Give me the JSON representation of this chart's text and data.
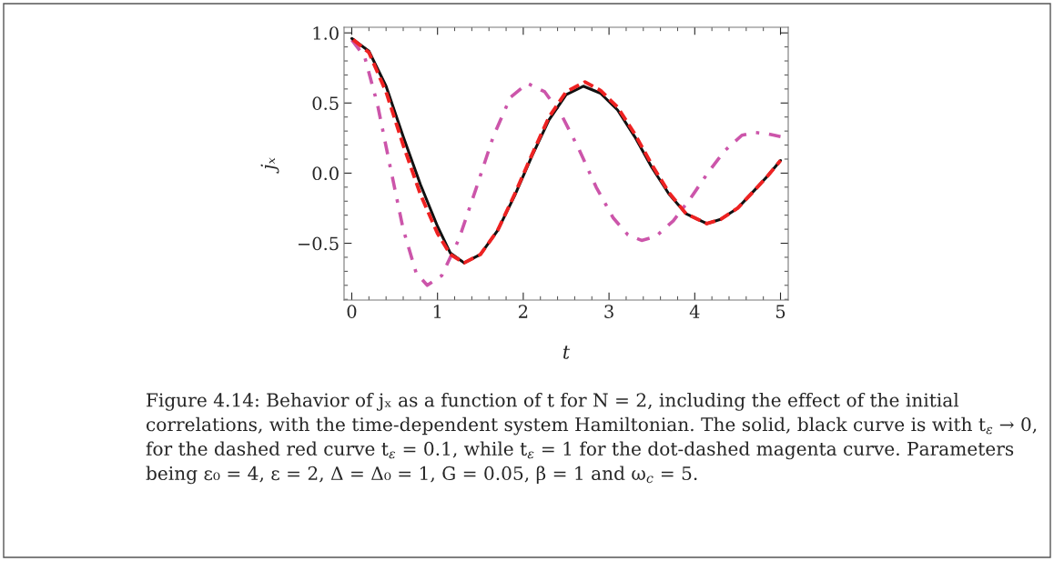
{
  "chart_data": {
    "type": "line",
    "xlabel": "t",
    "ylabel": "jₓ",
    "xlim": [
      -0.09,
      5.09
    ],
    "ylim": [
      -0.905,
      1.04
    ],
    "xticks": [
      0,
      1,
      2,
      3,
      4,
      5
    ],
    "yticks": [
      {
        "value": -0.5,
        "label": "−0.5"
      },
      {
        "value": 0.0,
        "label": "0.0"
      },
      {
        "value": 0.5,
        "label": "0.5"
      },
      {
        "value": 1.0,
        "label": "1.0"
      }
    ],
    "grid": false,
    "series": [
      {
        "color": "#cc55aa",
        "line_style": "dashdot",
        "x": [
          0,
          0.15,
          0.3,
          0.45,
          0.6,
          0.75,
          0.88,
          1.05,
          1.25,
          1.45,
          1.65,
          1.85,
          2.05,
          2.25,
          2.45,
          2.65,
          2.85,
          3.05,
          3.22,
          3.38,
          3.55,
          3.75,
          3.95,
          4.15,
          4.35,
          4.55,
          4.7,
          4.85,
          5.0
        ],
        "values": [
          0.95,
          0.83,
          0.49,
          0.04,
          -0.4,
          -0.71,
          -0.8,
          -0.73,
          -0.47,
          -0.11,
          0.26,
          0.54,
          0.64,
          0.58,
          0.41,
          0.17,
          -0.1,
          -0.32,
          -0.44,
          -0.48,
          -0.45,
          -0.34,
          -0.18,
          0.0,
          0.16,
          0.27,
          0.29,
          0.28,
          0.26
        ]
      },
      {
        "color": "#ee2222",
        "line_style": "dashed",
        "x": [
          0,
          0.2,
          0.4,
          0.6,
          0.8,
          1.0,
          1.15,
          1.31,
          1.5,
          1.7,
          1.9,
          2.1,
          2.3,
          2.5,
          2.72,
          2.9,
          3.1,
          3.3,
          3.5,
          3.7,
          3.9,
          4.14,
          4.3,
          4.5,
          4.7,
          4.85,
          5.0
        ],
        "values": [
          0.96,
          0.86,
          0.58,
          0.2,
          -0.15,
          -0.43,
          -0.58,
          -0.64,
          -0.58,
          -0.41,
          -0.15,
          0.13,
          0.4,
          0.58,
          0.65,
          0.59,
          0.47,
          0.28,
          0.06,
          -0.14,
          -0.29,
          -0.36,
          -0.33,
          -0.25,
          -0.12,
          -0.02,
          0.09
        ]
      },
      {
        "color": "#111111",
        "line_style": "solid",
        "x": [
          0,
          0.2,
          0.4,
          0.6,
          0.8,
          1.0,
          1.15,
          1.31,
          1.5,
          1.7,
          1.9,
          2.1,
          2.3,
          2.5,
          2.7,
          2.9,
          3.1,
          3.3,
          3.5,
          3.7,
          3.9,
          4.14,
          4.3,
          4.5,
          4.7,
          4.85,
          5.0
        ],
        "values": [
          0.96,
          0.87,
          0.62,
          0.26,
          -0.08,
          -0.38,
          -0.57,
          -0.64,
          -0.58,
          -0.41,
          -0.16,
          0.12,
          0.38,
          0.56,
          0.62,
          0.57,
          0.45,
          0.26,
          0.04,
          -0.15,
          -0.29,
          -0.36,
          -0.33,
          -0.25,
          -0.12,
          -0.02,
          0.09
        ]
      }
    ],
    "annotations": [
      "Figure 4.14: Behavior of jₓ as a function of t for N = 2, including the effect of the initial correlations, with the time-dependent system Hamiltonian. The solid, black curve is with t$_{ε}$ → 0, for the dashed red curve t$_{ε}$ = 0.1, while t$_{ε}$ = 1 for the dot-dashed magenta curve. Parameters being ε₀ = 4, ε = 2, Δ = Δ₀ = 1, G = 0.05, β = 1 and ω$_{c}$ = 5."
    ]
  }
}
